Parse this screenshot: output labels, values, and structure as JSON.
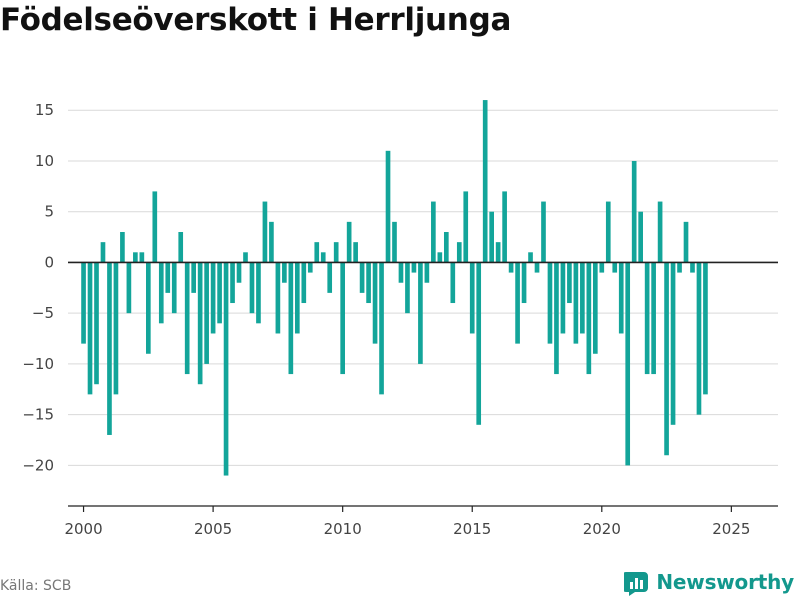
{
  "title": "Födelseöverskott i Herrljunga",
  "source": "Källa: SCB",
  "brand": "Newsworthy",
  "colors": {
    "bar": "#13a59a",
    "grid": "#d9d9d9",
    "zero": "#222222",
    "brand": "#13988d"
  },
  "chart_data": {
    "type": "bar",
    "title": "Födelseöverskott i Herrljunga",
    "xlabel": "",
    "ylabel": "",
    "ylim": [
      -24,
      16.5
    ],
    "yticks": [
      15,
      10,
      5,
      0,
      -5,
      -10,
      -15,
      -20
    ],
    "ytick_labels": [
      "15",
      "10",
      "5",
      "0",
      "−5",
      "−10",
      "−15",
      "−20"
    ],
    "xlim": [
      1999.4,
      2026.8
    ],
    "xticks": [
      "2000",
      "2005",
      "2010",
      "2015",
      "2020",
      "2025"
    ],
    "grid": true,
    "legend": "none",
    "period_start": 2000,
    "periods_per_year": 4,
    "values": [
      -8,
      -13,
      -12,
      2,
      -17,
      -13,
      3,
      -5,
      1,
      1,
      -9,
      7,
      -6,
      -3,
      -5,
      3,
      -11,
      -3,
      -12,
      -10,
      -7,
      -6,
      -21,
      -4,
      -2,
      1,
      -5,
      -6,
      6,
      4,
      -7,
      -2,
      -11,
      -7,
      -4,
      -1,
      2,
      1,
      -3,
      2,
      -11,
      4,
      2,
      -3,
      -4,
      -8,
      -13,
      11,
      4,
      -2,
      -5,
      -1,
      -10,
      -2,
      6,
      1,
      3,
      -4,
      2,
      7,
      -7,
      -16,
      16,
      5,
      2,
      7,
      -1,
      -8,
      -4,
      1,
      -1,
      6,
      -8,
      -11,
      -7,
      -4,
      -8,
      -7,
      -11,
      -9,
      -1,
      6,
      -1,
      -7,
      -20,
      10,
      5,
      -11,
      -11,
      6,
      -19,
      -16,
      -1,
      4,
      -1,
      -15,
      -13
    ]
  }
}
